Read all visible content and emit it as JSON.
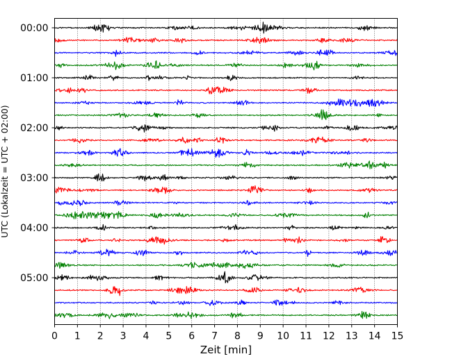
{
  "chart_data": {
    "type": "line",
    "title": "",
    "xlabel": "Zeit  [min]",
    "ylabel": "UTC (Lokalzeit = UTC + 02:00)",
    "xlim": [
      0,
      15
    ],
    "xticks": [
      0,
      1,
      2,
      3,
      4,
      5,
      6,
      7,
      8,
      9,
      10,
      11,
      12,
      13,
      14,
      15
    ],
    "x_grid": "dotted vertical lines at each minute",
    "trace_interval_minutes": 15,
    "time_range": [
      "00:00",
      "05:45"
    ],
    "ytick_labels": [
      "00:00",
      "01:00",
      "02:00",
      "03:00",
      "04:00",
      "05:00"
    ],
    "trace_color_cycle": [
      "#000000",
      "#ff0000",
      "#0000ff",
      "#008000"
    ],
    "series": [
      {
        "start": "00:00",
        "color": "#000000"
      },
      {
        "start": "00:15",
        "color": "#ff0000"
      },
      {
        "start": "00:30",
        "color": "#0000ff"
      },
      {
        "start": "00:45",
        "color": "#008000"
      },
      {
        "start": "01:00",
        "color": "#000000"
      },
      {
        "start": "01:15",
        "color": "#ff0000"
      },
      {
        "start": "01:30",
        "color": "#0000ff"
      },
      {
        "start": "01:45",
        "color": "#008000"
      },
      {
        "start": "02:00",
        "color": "#000000"
      },
      {
        "start": "02:15",
        "color": "#ff0000"
      },
      {
        "start": "02:30",
        "color": "#0000ff"
      },
      {
        "start": "02:45",
        "color": "#008000"
      },
      {
        "start": "03:00",
        "color": "#000000"
      },
      {
        "start": "03:15",
        "color": "#ff0000"
      },
      {
        "start": "03:30",
        "color": "#0000ff"
      },
      {
        "start": "03:45",
        "color": "#008000"
      },
      {
        "start": "04:00",
        "color": "#000000"
      },
      {
        "start": "04:15",
        "color": "#ff0000"
      },
      {
        "start": "04:30",
        "color": "#0000ff"
      },
      {
        "start": "04:45",
        "color": "#008000"
      },
      {
        "start": "05:00",
        "color": "#000000"
      },
      {
        "start": "05:15",
        "color": "#ff0000"
      },
      {
        "start": "05:30",
        "color": "#0000ff"
      },
      {
        "start": "05:45",
        "color": "#008000"
      }
    ]
  }
}
